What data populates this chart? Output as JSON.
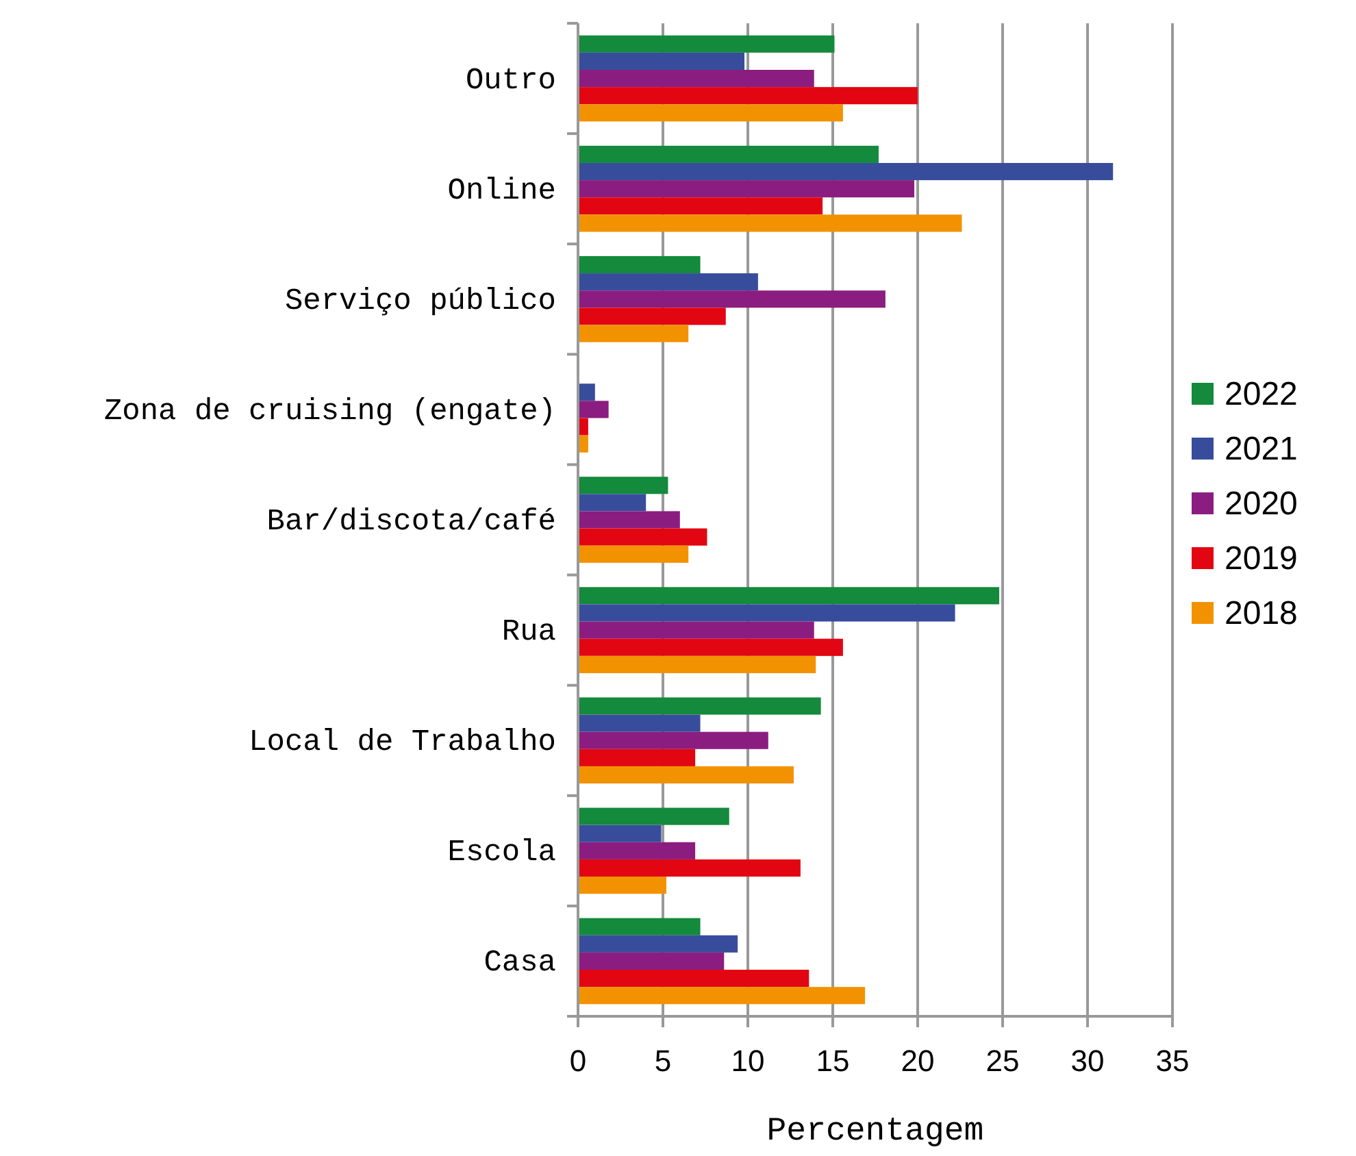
{
  "chart_data": {
    "type": "bar",
    "orientation": "horizontal",
    "xlabel": "Percentagem",
    "categories": [
      "Outro",
      "Online",
      "Serviço público",
      "Zona de cruising (engate)",
      "Bar/discota/café",
      "Rua",
      "Local de Trabalho",
      "Escola",
      "Casa"
    ],
    "series": [
      {
        "name": "2022",
        "color": "#138a3c",
        "values": [
          15.1,
          17.7,
          7.2,
          0,
          5.3,
          24.8,
          14.3,
          8.9,
          7.2
        ]
      },
      {
        "name": "2021",
        "color": "#374d9c",
        "values": [
          9.8,
          31.5,
          10.6,
          1.0,
          4.0,
          22.2,
          7.2,
          4.9,
          9.4
        ]
      },
      {
        "name": "2020",
        "color": "#8b1d80",
        "values": [
          13.9,
          19.8,
          18.1,
          1.8,
          6.0,
          13.9,
          11.2,
          6.9,
          8.6
        ]
      },
      {
        "name": "2019",
        "color": "#e20613",
        "values": [
          20.0,
          14.4,
          8.7,
          0.6,
          7.6,
          15.6,
          6.9,
          13.1,
          13.6
        ]
      },
      {
        "name": "2018",
        "color": "#f39200",
        "values": [
          15.6,
          22.6,
          6.5,
          0.6,
          6.5,
          14.0,
          12.7,
          5.2,
          16.9
        ]
      }
    ],
    "xlim": [
      0,
      35
    ],
    "xticks": [
      0,
      5,
      10,
      15,
      20,
      25,
      30,
      35
    ],
    "grid": "x",
    "legend": "right"
  }
}
